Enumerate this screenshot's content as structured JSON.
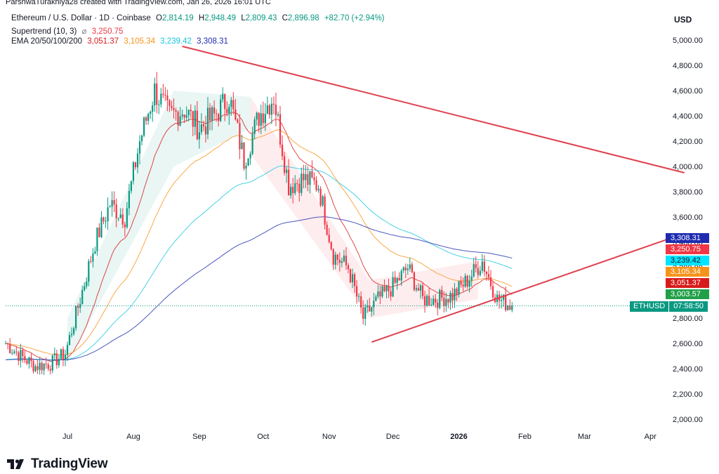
{
  "header": {
    "creator_text": "ParshwaTurakhiya28 created with TradingView.com, Jan 26, 2026 16:01 UTC"
  },
  "legend": {
    "symbol": "Ethereum / U.S. Dollar · 1D · Coinbase",
    "o_label": "O",
    "o_value": "2,814.19",
    "h_label": "H",
    "h_value": "2,948.49",
    "l_label": "L",
    "l_value": "2,809.43",
    "c_label": "C",
    "c_value": "2,896.98",
    "change": "+82.70 (+2.94%)",
    "supertrend_label": "Supertrend (10, 3)",
    "supertrend_sep": "⌀",
    "supertrend_value": "3,250.75",
    "ema_label": "EMA 20/50/100/200",
    "ema20": "3,051.37",
    "ema50": "3,105.34",
    "ema100": "3,239.42",
    "ema200": "3,308.31"
  },
  "price_tags": [
    {
      "value": "3,308.31",
      "color": "#1e2bb0"
    },
    {
      "value": "3,250.75",
      "color": "#f23645"
    },
    {
      "value": "3,239.42",
      "color": "#00e5ff"
    },
    {
      "value": "3,105.34",
      "color": "#f7931a"
    },
    {
      "value": "3,051.37",
      "color": "#d81b1b"
    },
    {
      "value": "3,003.57",
      "color": "#22a049"
    }
  ],
  "current_price": {
    "symbol": "ETHUSD",
    "countdown": "07:58:50",
    "value": 2896.98
  },
  "brand": {
    "name": "TradingView"
  },
  "colors": {
    "up": "#089981",
    "down": "#f23645",
    "trendline": "#e0404e"
  },
  "chart_data": {
    "type": "candlestick",
    "title": "Ethereum / U.S. Dollar · 1D · Coinbase",
    "currency_label": "USD",
    "y_ticks": [
      2000,
      2200,
      2400,
      2600,
      2800,
      3000,
      3200,
      3400,
      3600,
      3800,
      4000,
      4200,
      4400,
      4600,
      4800,
      5000
    ],
    "y_tick_labels": [
      "2,000.00",
      "2,200.00",
      "2,400.00",
      "2,600.00",
      "2,800.00",
      "3,000.00",
      "3,200.00",
      "3,400.00",
      "3,600.00",
      "3,800.00",
      "4,000.00",
      "4,200.00",
      "4,400.00",
      "4,600.00",
      "4,800.00",
      "5,000.00"
    ],
    "x_ticks": [
      {
        "date": "2025-07-01",
        "label": "Jul"
      },
      {
        "date": "2025-08-01",
        "label": "Aug"
      },
      {
        "date": "2025-09-01",
        "label": "Sep"
      },
      {
        "date": "2025-10-01",
        "label": "Oct"
      },
      {
        "date": "2025-11-01",
        "label": "Nov"
      },
      {
        "date": "2025-12-01",
        "label": "Dec"
      },
      {
        "date": "2026-01-01",
        "label": "2026"
      },
      {
        "date": "2026-02-01",
        "label": "Feb"
      },
      {
        "date": "2026-03-01",
        "label": "Mar"
      },
      {
        "date": "2026-04-01",
        "label": "Apr"
      }
    ],
    "series_approx_weekly_close": [
      {
        "date": "2025-06-02",
        "close": 2600
      },
      {
        "date": "2025-06-09",
        "close": 2500
      },
      {
        "date": "2025-06-16",
        "close": 2420
      },
      {
        "date": "2025-06-23",
        "close": 2440
      },
      {
        "date": "2025-06-30",
        "close": 2520
      },
      {
        "date": "2025-07-07",
        "close": 2950
      },
      {
        "date": "2025-07-14",
        "close": 3400
      },
      {
        "date": "2025-07-21",
        "close": 3700
      },
      {
        "date": "2025-07-28",
        "close": 3600
      },
      {
        "date": "2025-08-04",
        "close": 4200
      },
      {
        "date": "2025-08-11",
        "close": 4600
      },
      {
        "date": "2025-08-18",
        "close": 4400
      },
      {
        "date": "2025-08-25",
        "close": 4450
      },
      {
        "date": "2025-09-01",
        "close": 4300
      },
      {
        "date": "2025-09-08",
        "close": 4400
      },
      {
        "date": "2025-09-15",
        "close": 4550
      },
      {
        "date": "2025-09-22",
        "close": 4050
      },
      {
        "date": "2025-09-29",
        "close": 4400
      },
      {
        "date": "2025-10-06",
        "close": 4550
      },
      {
        "date": "2025-10-13",
        "close": 3850
      },
      {
        "date": "2025-10-20",
        "close": 3900
      },
      {
        "date": "2025-10-27",
        "close": 3850
      },
      {
        "date": "2025-11-03",
        "close": 3300
      },
      {
        "date": "2025-11-10",
        "close": 3200
      },
      {
        "date": "2025-11-17",
        "close": 2800
      },
      {
        "date": "2025-11-24",
        "close": 2950
      },
      {
        "date": "2025-12-01",
        "close": 3050
      },
      {
        "date": "2025-12-08",
        "close": 3200
      },
      {
        "date": "2025-12-15",
        "close": 2950
      },
      {
        "date": "2025-12-22",
        "close": 2950
      },
      {
        "date": "2025-12-29",
        "close": 2980
      },
      {
        "date": "2026-01-05",
        "close": 3100
      },
      {
        "date": "2026-01-12",
        "close": 3250
      },
      {
        "date": "2026-01-19",
        "close": 2950
      },
      {
        "date": "2026-01-26",
        "close": 2896.98
      }
    ],
    "indicators": {
      "supertrend_last": 3250.75,
      "ema20_last": 3051.37,
      "ema50_last": 3105.34,
      "ema100_last": 3239.42,
      "ema200_last": 3308.31
    },
    "trendlines": [
      {
        "name": "descending resistance",
        "from": {
          "date": "2025-08-24",
          "price": 4950
        },
        "to": {
          "date": "2026-04-17",
          "price": 3950
        }
      },
      {
        "name": "ascending support",
        "from": {
          "date": "2025-11-21",
          "price": 2610
        },
        "to": {
          "date": "2026-04-17",
          "price": 3470
        }
      }
    ],
    "current_price_line": 2896.98,
    "grid": false
  }
}
